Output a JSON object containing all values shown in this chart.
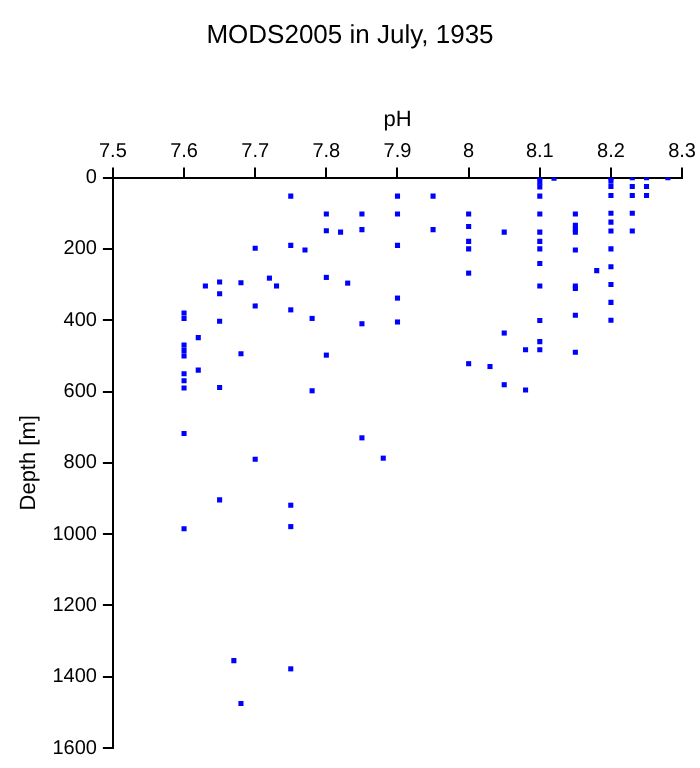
{
  "chart_data": {
    "type": "scatter",
    "title": "MODS2005 in July, 1935",
    "xlabel": "pH",
    "ylabel": "Depth [m]",
    "marker": "square",
    "xlim": [
      7.5,
      8.3
    ],
    "xticks": [
      7.5,
      7.6,
      7.7,
      7.8,
      7.9,
      8,
      8.1,
      8.2,
      8.3
    ],
    "ylim": [
      1600,
      0
    ],
    "yticks": [
      0,
      200,
      400,
      600,
      800,
      1000,
      1200,
      1400,
      1600
    ],
    "series": [
      {
        "color": "#0000ff",
        "x": [
          7.75,
          7.8,
          7.85,
          7.8,
          7.82,
          7.85,
          7.75,
          7.77,
          7.7,
          7.9,
          7.9,
          7.9,
          7.63,
          7.65,
          7.68,
          7.72,
          7.73,
          7.65,
          7.8,
          7.83,
          7.7,
          7.75,
          7.78,
          7.65,
          7.85,
          7.9,
          7.9,
          7.6,
          7.6,
          7.6,
          7.6,
          7.6,
          7.6,
          7.6,
          7.6,
          7.62,
          7.62,
          7.68,
          7.8,
          7.65,
          7.78,
          7.6,
          7.85,
          7.7,
          7.88,
          7.65,
          7.75,
          7.6,
          7.75,
          7.67,
          7.75,
          7.68,
          8.1,
          8.1,
          8.1,
          8.1,
          8.1,
          8.1,
          8.1,
          8.1,
          8.1,
          8.1,
          8.1,
          8.1,
          8.1,
          8.12,
          7.95,
          7.95,
          8,
          8,
          8,
          8,
          8,
          8.05,
          8.05,
          8.08,
          8,
          8.03,
          8.05,
          8.08,
          8.15,
          8.15,
          8.15,
          8.15,
          8.15,
          8.15,
          8.15,
          8.15,
          8.15,
          8.18,
          8.2,
          8.2,
          8.2,
          8.2,
          8.2,
          8.2,
          8.2,
          8.2,
          8.2,
          8.2,
          8.2,
          8.2,
          8.23,
          8.23,
          8.23,
          8.23,
          8.23,
          8.25,
          8.25,
          8.25,
          8.28
        ],
        "values": [
          52,
          102,
          102,
          149,
          153,
          146,
          190,
          203,
          198,
          52,
          102,
          190,
          304,
          293,
          295,
          282,
          304,
          326,
          280,
          296,
          360,
          371,
          395,
          403,
          410,
          338,
          405,
          380,
          395,
          470,
          485,
          500,
          550,
          570,
          590,
          449,
          540,
          494,
          498,
          589,
          598,
          718,
          730,
          790,
          787,
          904,
          919,
          985,
          979,
          1355,
          1378,
          1475,
          0,
          13,
          26,
          52,
          102,
          153,
          179,
          200,
          241,
          304,
          401,
          460,
          483,
          2,
          52,
          146,
          102,
          137,
          179,
          200,
          268,
          153,
          436,
          483,
          522,
          530,
          581,
          596,
          102,
          134,
          145,
          153,
          203,
          304,
          311,
          386,
          490,
          261,
          0,
          10,
          25,
          50,
          100,
          125,
          150,
          200,
          250,
          300,
          350,
          400,
          0,
          25,
          50,
          100,
          150,
          0,
          25,
          50,
          0
        ]
      }
    ]
  }
}
